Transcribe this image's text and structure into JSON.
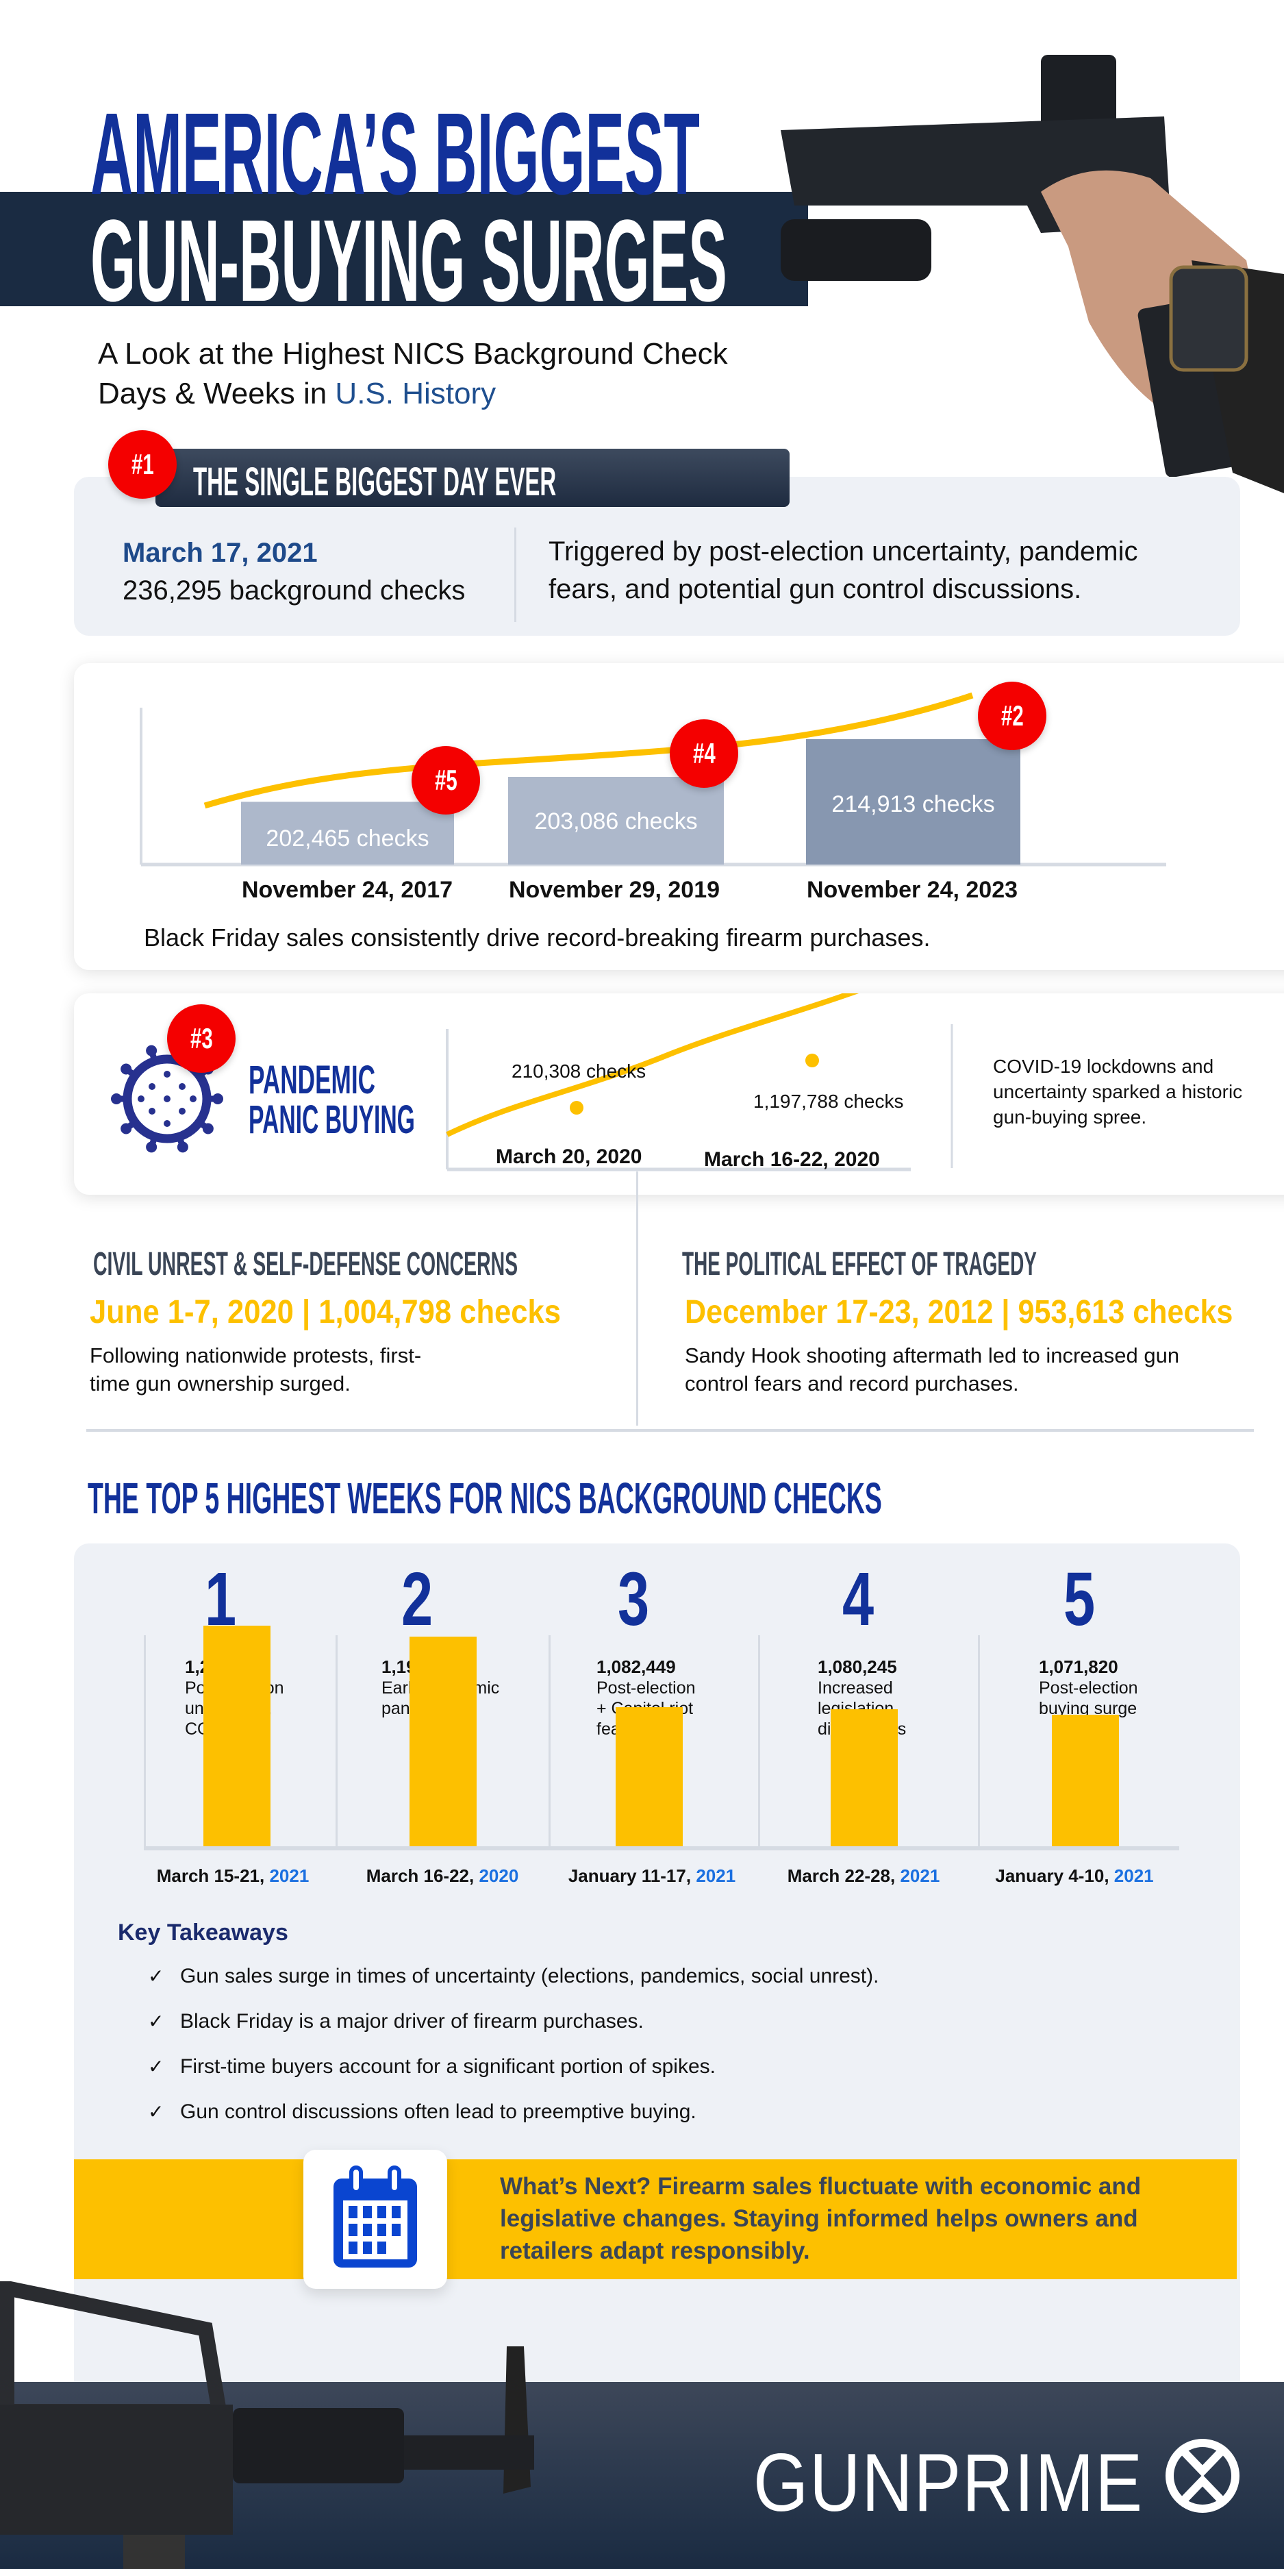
{
  "header": {
    "title_line1": "AMERICA’S BIGGEST",
    "title_line2": "GUN-BUYING SURGES",
    "subtitle_line1": "A Look at the Highest NICS Background Check",
    "subtitle_line2_prefix": "Days & Weeks in ",
    "subtitle_line2_highlight": "U.S. History"
  },
  "colors": {
    "navy": "#1a2b42",
    "title_blue": "#12319a",
    "accent_yellow": "#fdc000",
    "badge_red": "#f40000",
    "card_gray": "#eef1f6",
    "link_blue": "#1a6fe0"
  },
  "biggest_day": {
    "badge": "#1",
    "heading": "THE SINGLE BIGGEST DAY EVER",
    "date": "March 17, 2021",
    "count": "236,295 background checks",
    "description_line1": "Triggered by post-election uncertainty, pandemic",
    "description_line2": "fears, and potential gun control discussions."
  },
  "black_friday": {
    "bars": [
      {
        "badge": "#5",
        "label": "202,465  checks",
        "date": "November 24, 2017",
        "value": 202465
      },
      {
        "badge": "#4",
        "label": "203,086 checks",
        "date": "November 29, 2019",
        "value": 203086
      },
      {
        "badge": "#2",
        "label": "214,913 checks",
        "date": "November 24, 2023",
        "value": 214913
      }
    ],
    "caption": "Black Friday sales consistently drive record-breaking firearm purchases."
  },
  "pandemic": {
    "badge": "#3",
    "icon": "virus-icon",
    "title_line1": "PANDEMIC",
    "title_line2": "PANIC BUYING",
    "point1_label": "210,308 checks",
    "point1_date": "March 20, 2020",
    "point2_label": "1,197,788 checks",
    "point2_date": "March 16-22, 2020",
    "description_line1": "COVID-19 lockdowns and",
    "description_line2": "uncertainty sparked a historic",
    "description_line3": "gun-buying spree."
  },
  "civil_unrest": {
    "heading": "CIVIL UNREST & SELF-DEFENSE CONCERNS",
    "stat": "June 1-7, 2020 | 1,004,798 checks",
    "body_line1": "Following nationwide protests, first-",
    "body_line2": "time gun ownership surged."
  },
  "tragedy": {
    "heading": "THE POLITICAL EFFECT OF TRAGEDY",
    "stat": "December 17-23, 2012 | 953,613 checks",
    "body_line1": "Sandy Hook shooting aftermath led to increased gun",
    "body_line2": "control fears and record purchases."
  },
  "top5": {
    "heading": "THE TOP 5 HIGHEST WEEKS FOR NICS BACKGROUND CHECKS",
    "weeks": [
      {
        "rank": "1",
        "value_label": "1,218,002",
        "value": 1218002,
        "desc": [
          "Post-election",
          "uncertainty,",
          "COVID-19"
        ],
        "date": "March 15-21, ",
        "year": "2021"
      },
      {
        "rank": "2",
        "value_label": "1,197,788",
        "value": 1197788,
        "desc": [
          "Early pandemic",
          "panic buying"
        ],
        "date": "March 16-22, ",
        "year": "2020"
      },
      {
        "rank": "3",
        "value_label": "1,082,449",
        "value": 1082449,
        "desc": [
          "Post-election",
          "+ Capitol riot",
          "fears"
        ],
        "date": "January 11-17, ",
        "year": "2021"
      },
      {
        "rank": "4",
        "value_label": "1,080,245",
        "value": 1080245,
        "desc": [
          "Increased",
          "legislation",
          "discussions"
        ],
        "date": "March 22-28, ",
        "year": "2021"
      },
      {
        "rank": "5",
        "value_label": "1,071,820",
        "value": 1071820,
        "desc": [
          "Post-election",
          "buying surge"
        ],
        "date": "January 4-10, ",
        "year": "2021"
      }
    ]
  },
  "takeaways": {
    "title": "Key Takeaways",
    "items": [
      "Gun sales surge in times of uncertainty (elections, pandemics, social unrest).",
      "Black Friday is a major driver of firearm purchases.",
      "First-time buyers account for a significant portion of spikes.",
      "Gun control discussions often lead to preemptive buying."
    ]
  },
  "whats_next": {
    "icon": "calendar-icon",
    "line1": "What’s Next? Firearm sales fluctuate with economic and",
    "line2": "legislative changes. Staying informed helps owners and",
    "line3": "retailers adapt responsibly."
  },
  "footer": {
    "brand": "GUNPRIME"
  }
}
